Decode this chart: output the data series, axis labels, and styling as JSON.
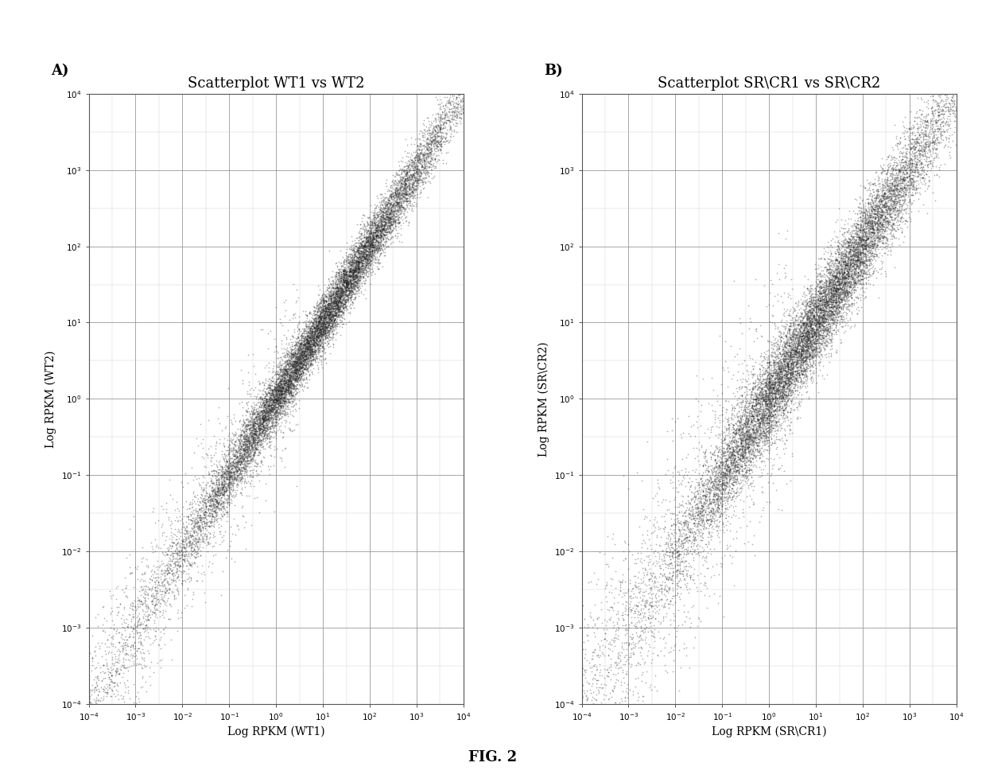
{
  "title_A": "Scatterplot WT1 vs WT2",
  "title_B": "Scatterplot SR\\CR1 vs SR\\CR2",
  "label_A": "A)",
  "label_B": "B)",
  "xlabel_A": "Log RPKM (WT1)",
  "ylabel_A": "Log RPKM (WT2)",
  "xlabel_B": "Log RPKM (SR\\CR1)",
  "ylabel_B": "Log RPKM (SR\\CR2)",
  "fig_label": "FIG. 2",
  "log_xlim": [
    -4,
    4
  ],
  "log_ylim": [
    -4,
    4
  ],
  "n_main": 14000,
  "n_scatter": 2000,
  "background_color": "#ffffff",
  "scatter_color": "#1a1a1a",
  "grid_major_color": "#999999",
  "grid_minor_color": "#cccccc",
  "marker_size_A": 1.5,
  "marker_size_B": 1.5,
  "marker_alpha": 0.35,
  "seed_A": 42,
  "seed_B": 77,
  "noise_A": 0.18,
  "noise_B": 0.28,
  "title_fontsize": 13,
  "axis_label_fontsize": 10,
  "tick_fontsize": 7.5,
  "panel_label_fontsize": 13
}
